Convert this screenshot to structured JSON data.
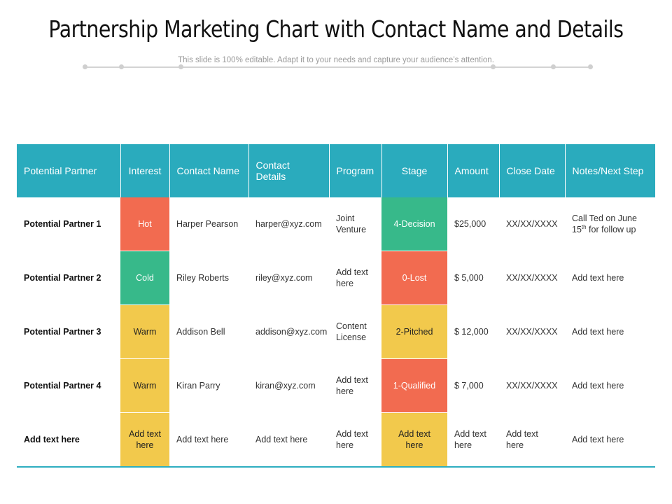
{
  "title": "Partnership Marketing Chart with Contact Name and Details",
  "subtitle": "This slide is 100% editable. Adapt it to your needs and capture your audience’s attention.",
  "table": {
    "headers": [
      "Potential Partner",
      "Interest",
      "Contact Name",
      "Contact Details",
      "Program",
      "Stage",
      "Amount",
      "Close Date",
      "Notes/Next Step"
    ],
    "rows": [
      {
        "partner": "Potential Partner 1",
        "interest": "Hot",
        "contact_name": "Harper Pearson",
        "contact_details": "harper@xyz.com",
        "program": "Joint Venture",
        "stage": "4-Decision",
        "amount": "$25,000",
        "close_date": "XX/XX/XXXX",
        "notes_pre": "Call Ted on June 15",
        "notes_sup": "th",
        "notes_post": " for follow up"
      },
      {
        "partner": "Potential Partner 2",
        "interest": "Cold",
        "contact_name": "Riley Roberts",
        "contact_details": "riley@xyz.com",
        "program": "Add text here",
        "stage": "0-Lost",
        "amount": "$ 5,000",
        "close_date": "XX/XX/XXXX",
        "notes": "Add text here"
      },
      {
        "partner": "Potential Partner 3",
        "interest": "Warm",
        "contact_name": "Addison Bell",
        "contact_details": "addison@xyz.com",
        "program": "Content License",
        "stage": "2-Pitched",
        "amount": "$ 12,000",
        "close_date": "XX/XX/XXXX",
        "notes": "Add text here"
      },
      {
        "partner": "Potential Partner 4",
        "interest": "Warm",
        "contact_name": "Kiran Parry",
        "contact_details": "kiran@xyz.com",
        "program": "Add text here",
        "stage": "1-Qualified",
        "amount": "$ 7,000",
        "close_date": "XX/XX/XXXX",
        "notes": "Add text here"
      },
      {
        "partner": "Add text here",
        "interest": "Add text here",
        "contact_name": "Add text here",
        "contact_details": "Add text here",
        "program": "Add text here",
        "stage": "Add text here",
        "amount": "Add text here",
        "close_date": "Add text here",
        "notes": "Add text here"
      }
    ]
  },
  "colors": {
    "header": "#2aabbd",
    "hot": "#f26b50",
    "cold": "#37b98a",
    "warm": "#f2c94c"
  }
}
